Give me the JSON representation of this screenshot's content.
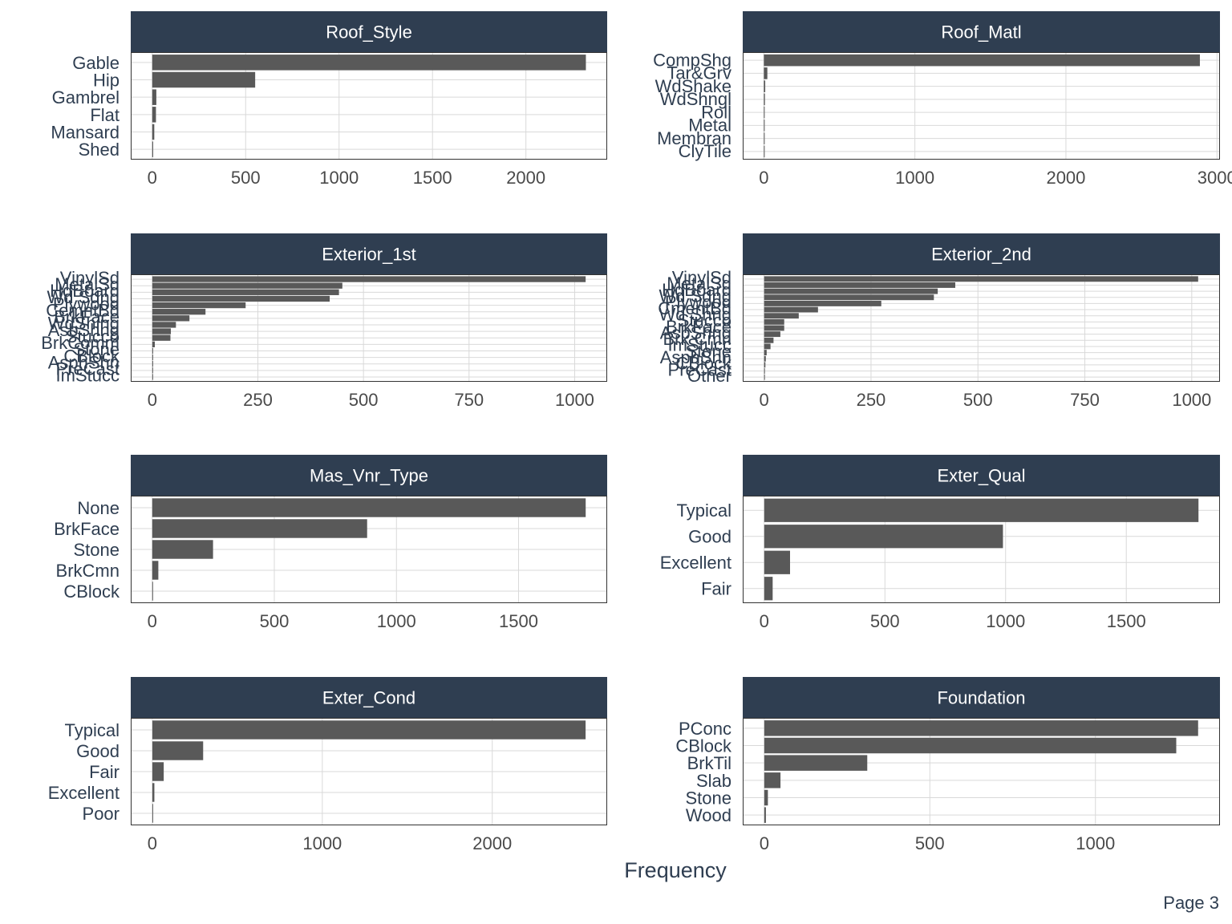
{
  "colors": {
    "strip_fill": "#2f3e51",
    "strip_text": "#ffffff",
    "bar_fill": "#595959",
    "grid": "#d9d9d9",
    "panel_border": "#333333",
    "tick_text": "#4a4a4a",
    "category_text": "#2f3e51"
  },
  "x_axis_title": "Frequency",
  "page_label": "Page 3",
  "chart_data": [
    {
      "type": "bar",
      "orientation": "horizontal",
      "title": "Roof_Style",
      "categories": [
        "Gable",
        "Hip",
        "Gambrel",
        "Flat",
        "Mansard",
        "Shed"
      ],
      "values": [
        2321,
        551,
        22,
        20,
        11,
        5
      ],
      "xlim": [
        -115,
        2435
      ],
      "xticks": [
        0,
        500,
        1000,
        1500,
        2000
      ],
      "grid": true
    },
    {
      "type": "bar",
      "orientation": "horizontal",
      "title": "Roof_Matl",
      "categories": [
        "CompShg",
        "Tar&Grv",
        "WdShake",
        "WdShngl",
        "Roll",
        "Metal",
        "Membran",
        "ClyTile"
      ],
      "values": [
        2887,
        23,
        9,
        7,
        1,
        1,
        1,
        1
      ],
      "xlim": [
        -140,
        3020
      ],
      "xticks": [
        0,
        1000,
        2000,
        3000
      ],
      "grid": true
    },
    {
      "type": "bar",
      "orientation": "horizontal",
      "title": "Exterior_1st",
      "categories": [
        "VinylSd",
        "MetalSd",
        "HdBoard",
        "Wd Sdng",
        "Plywood",
        "CemntBd",
        "BrkFace",
        "WdShing",
        "AsbShng",
        "Stucco",
        "BrkComm",
        "Stone",
        "CBlock",
        "AsphShn",
        "PreCast",
        "ImStucc"
      ],
      "values": [
        1026,
        450,
        442,
        420,
        221,
        126,
        88,
        56,
        44,
        43,
        6,
        2,
        2,
        2,
        1,
        1
      ],
      "xlim": [
        -51,
        1077
      ],
      "xticks": [
        0,
        250,
        500,
        750,
        1000
      ],
      "grid": true
    },
    {
      "type": "bar",
      "orientation": "horizontal",
      "title": "Exterior_2nd",
      "categories": [
        "VinylSd",
        "MetalSd",
        "HdBoard",
        "Wd Sdng",
        "Plywood",
        "CmentBd",
        "Wd Shng",
        "Stucco",
        "BrkFace",
        "AsbShng",
        "Brk Cmn",
        "ImStucc",
        "Stone",
        "AsphShn",
        "CBlock",
        "PreCast",
        "Other"
      ],
      "values": [
        1015,
        447,
        406,
        397,
        274,
        126,
        81,
        47,
        47,
        38,
        22,
        15,
        6,
        4,
        3,
        1,
        1
      ],
      "xlim": [
        -50,
        1066
      ],
      "xticks": [
        0,
        250,
        500,
        750,
        1000
      ],
      "grid": true
    },
    {
      "type": "bar",
      "orientation": "horizontal",
      "title": "Mas_Vnr_Type",
      "categories": [
        "None",
        "BrkFace",
        "Stone",
        "BrkCmn",
        "CBlock"
      ],
      "values": [
        1775,
        880,
        249,
        25,
        1
      ],
      "xlim": [
        -88,
        1863
      ],
      "xticks": [
        0,
        500,
        1000,
        1500
      ],
      "grid": true
    },
    {
      "type": "bar",
      "orientation": "horizontal",
      "title": "Exter_Qual",
      "categories": [
        "Typical",
        "Good",
        "Excellent",
        "Fair"
      ],
      "values": [
        1799,
        989,
        107,
        35
      ],
      "xlim": [
        -89,
        1888
      ],
      "xticks": [
        0,
        500,
        1000,
        1500
      ],
      "grid": true
    },
    {
      "type": "bar",
      "orientation": "horizontal",
      "title": "Exter_Cond",
      "categories": [
        "Typical",
        "Good",
        "Fair",
        "Excellent",
        "Poor"
      ],
      "values": [
        2549,
        299,
        67,
        12,
        3
      ],
      "xlim": [
        -127,
        2676
      ],
      "xticks": [
        0,
        1000,
        2000
      ],
      "grid": true
    },
    {
      "type": "bar",
      "orientation": "horizontal",
      "title": "Foundation",
      "categories": [
        "PConc",
        "CBlock",
        "BrkTil",
        "Slab",
        "Stone",
        "Wood"
      ],
      "values": [
        1310,
        1244,
        311,
        49,
        11,
        5
      ],
      "xlim": [
        -65,
        1376
      ],
      "xticks": [
        0,
        500,
        1000
      ],
      "grid": true
    }
  ]
}
